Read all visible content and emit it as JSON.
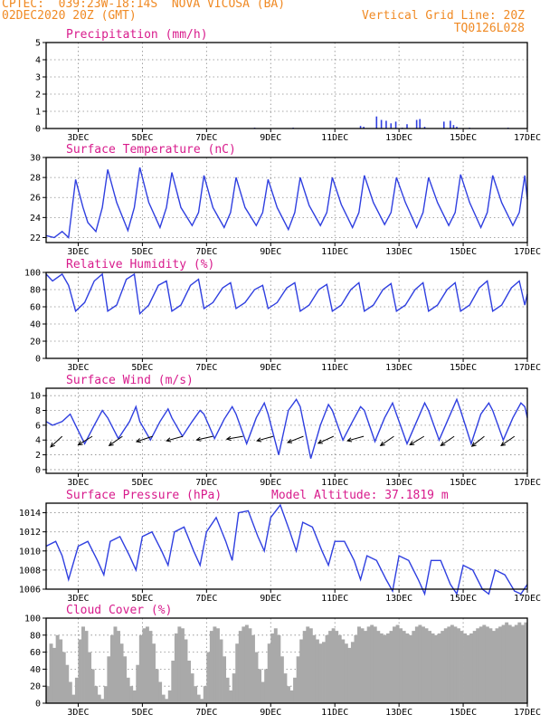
{
  "header": {
    "left_line1": "CPTEC:  039:23W-18:14S  NOVA VICOSA (BA)",
    "left_line2": "02DEC2020 20Z (GMT)",
    "right_line1": "Vertical Grid Line: 20Z",
    "right_line2": "TQ0126L028"
  },
  "colors": {
    "header": "#f08a24",
    "title": "#d81b8c",
    "series": "#2f3fe0",
    "cloud": "#a9a9a9"
  },
  "x_ticks": [
    "3DEC",
    "5DEC",
    "7DEC",
    "9DEC",
    "11DEC",
    "13DEC",
    "15DEC",
    "17DEC"
  ],
  "chart_data": [
    {
      "type": "bar",
      "title": "Precipitation (mm/h)",
      "x_range_days": [
        2.0,
        17.0
      ],
      "ylim": [
        0,
        5
      ],
      "yticks": [
        0,
        1,
        2,
        3,
        4,
        5
      ],
      "grid": true,
      "x": [
        3.1,
        8.5,
        9.7,
        11.8,
        11.9,
        12.3,
        12.45,
        12.6,
        12.75,
        12.9,
        13.1,
        13.25,
        13.55,
        13.65,
        13.8,
        14.4,
        14.6,
        14.7,
        14.8,
        15.2,
        16.4
      ],
      "values": [
        0.02,
        0.05,
        0.05,
        0.15,
        0.1,
        0.7,
        0.5,
        0.45,
        0.3,
        0.4,
        0.05,
        0.25,
        0.5,
        0.55,
        0.1,
        0.4,
        0.45,
        0.2,
        0.1,
        0.05,
        0.05
      ]
    },
    {
      "type": "line",
      "title": "Surface Temperature (nC)",
      "x_range_days": [
        2.0,
        17.0
      ],
      "ylim": [
        21.5,
        30
      ],
      "yticks": [
        22,
        24,
        26,
        28,
        30
      ],
      "grid": true,
      "series": [
        {
          "x": [
            2.0,
            2.25,
            2.5,
            2.7,
            2.92,
            3.15,
            3.3,
            3.55,
            3.75,
            3.92,
            4.2,
            4.55,
            4.75,
            4.92,
            5.2,
            5.55,
            5.75,
            5.92,
            6.2,
            6.55,
            6.75,
            6.92,
            7.2,
            7.55,
            7.75,
            7.92,
            8.2,
            8.55,
            8.75,
            8.92,
            9.2,
            9.55,
            9.75,
            9.92,
            10.2,
            10.55,
            10.75,
            10.92,
            11.2,
            11.55,
            11.75,
            11.92,
            12.2,
            12.55,
            12.75,
            12.92,
            13.2,
            13.55,
            13.75,
            13.92,
            14.2,
            14.55,
            14.75,
            14.92,
            15.2,
            15.55,
            15.75,
            15.92,
            16.2,
            16.55,
            16.75,
            16.92,
            17.0
          ],
          "values": [
            22.2,
            22.0,
            22.6,
            22.0,
            27.8,
            25.0,
            23.5,
            22.6,
            25.0,
            28.8,
            25.5,
            22.7,
            25.0,
            29.0,
            25.5,
            23.0,
            25.0,
            28.5,
            25.0,
            23.2,
            24.5,
            28.2,
            25.0,
            23.0,
            24.5,
            28.0,
            25.0,
            23.2,
            24.5,
            27.8,
            25.0,
            22.8,
            24.5,
            28.0,
            25.2,
            23.2,
            24.5,
            28.0,
            25.3,
            23.0,
            24.5,
            28.2,
            25.5,
            23.3,
            24.5,
            28.0,
            25.5,
            23.0,
            24.5,
            28.0,
            25.5,
            23.2,
            24.5,
            28.3,
            25.5,
            23.0,
            24.5,
            28.2,
            25.5,
            23.2,
            24.5,
            28.2,
            25.8
          ]
        }
      ]
    },
    {
      "type": "line",
      "title": "Relative Humidity (%)",
      "x_range_days": [
        2.0,
        17.0
      ],
      "ylim": [
        0,
        100
      ],
      "yticks": [
        0,
        20,
        40,
        60,
        80,
        100
      ],
      "grid": true,
      "series": [
        {
          "x": [
            2.0,
            2.2,
            2.5,
            2.7,
            2.92,
            3.2,
            3.5,
            3.75,
            3.92,
            4.2,
            4.5,
            4.75,
            4.92,
            5.2,
            5.5,
            5.75,
            5.92,
            6.2,
            6.5,
            6.75,
            6.92,
            7.2,
            7.5,
            7.75,
            7.92,
            8.2,
            8.5,
            8.75,
            8.92,
            9.2,
            9.5,
            9.75,
            9.92,
            10.2,
            10.5,
            10.75,
            10.92,
            11.2,
            11.5,
            11.75,
            11.92,
            12.2,
            12.5,
            12.75,
            12.92,
            13.2,
            13.5,
            13.75,
            13.92,
            14.2,
            14.5,
            14.75,
            14.92,
            15.2,
            15.5,
            15.75,
            15.92,
            16.2,
            16.5,
            16.75,
            16.92,
            17.0
          ],
          "values": [
            98,
            90,
            98,
            85,
            55,
            65,
            90,
            98,
            55,
            62,
            92,
            98,
            52,
            62,
            85,
            90,
            55,
            62,
            85,
            92,
            58,
            65,
            82,
            88,
            58,
            65,
            80,
            85,
            58,
            65,
            82,
            88,
            55,
            62,
            80,
            86,
            55,
            62,
            80,
            88,
            55,
            62,
            80,
            87,
            55,
            62,
            80,
            88,
            55,
            62,
            80,
            88,
            55,
            62,
            82,
            90,
            55,
            62,
            82,
            90,
            62,
            75
          ]
        }
      ]
    },
    {
      "type": "line",
      "title": "Surface Wind (m/s)",
      "x_range_days": [
        2.0,
        17.0
      ],
      "ylim": [
        -0.5,
        11
      ],
      "yticks": [
        0,
        2,
        4,
        6,
        8,
        10
      ],
      "grid": true,
      "series": [
        {
          "x": [
            2.0,
            2.2,
            2.5,
            2.75,
            2.92,
            3.2,
            3.5,
            3.75,
            3.92,
            4.25,
            4.6,
            4.8,
            4.92,
            5.25,
            5.55,
            5.8,
            5.92,
            6.25,
            6.55,
            6.8,
            6.92,
            7.25,
            7.55,
            7.8,
            7.92,
            8.25,
            8.55,
            8.8,
            8.92,
            9.25,
            9.55,
            9.8,
            9.92,
            10.25,
            10.55,
            10.8,
            10.92,
            11.25,
            11.55,
            11.8,
            11.92,
            12.25,
            12.55,
            12.8,
            12.92,
            13.25,
            13.55,
            13.8,
            13.92,
            14.25,
            14.55,
            14.8,
            14.92,
            15.25,
            15.55,
            15.8,
            15.92,
            16.25,
            16.55,
            16.8,
            16.92,
            17.0
          ],
          "values": [
            6.5,
            6.0,
            6.5,
            7.5,
            6.0,
            3.5,
            6.0,
            8.0,
            7.0,
            4.2,
            6.5,
            8.5,
            6.5,
            4.0,
            6.5,
            8.2,
            7.0,
            4.5,
            6.5,
            8.0,
            7.5,
            4.2,
            6.8,
            8.5,
            7.5,
            3.5,
            7.0,
            9.0,
            7.5,
            2.0,
            8.0,
            9.5,
            8.5,
            1.5,
            6.0,
            8.8,
            8.0,
            4.0,
            6.5,
            8.5,
            8.0,
            3.8,
            7.0,
            9.0,
            7.5,
            3.5,
            6.5,
            9.0,
            8.0,
            4.0,
            7.0,
            9.5,
            8.0,
            3.5,
            7.5,
            9.0,
            8.0,
            4.0,
            7.0,
            9.0,
            8.5,
            7.0
          ]
        }
      ],
      "wind_arrows_deg_from": [
        45,
        60,
        55,
        80,
        85,
        90,
        95,
        85,
        75,
        70,
        85,
        55,
        60,
        55,
        50,
        55
      ]
    },
    {
      "type": "line",
      "title": "Surface Pressure (hPa)",
      "annotation": "Model Altitude: 37.1819 m",
      "x_range_days": [
        2.0,
        17.0
      ],
      "ylim": [
        1006,
        1015
      ],
      "yticks": [
        1006,
        1008,
        1010,
        1012,
        1014
      ],
      "grid": true,
      "series": [
        {
          "x": [
            2.0,
            2.3,
            2.5,
            2.7,
            3.0,
            3.3,
            3.6,
            3.8,
            4.0,
            4.3,
            4.6,
            4.8,
            5.0,
            5.3,
            5.6,
            5.8,
            6.0,
            6.3,
            6.6,
            6.8,
            7.0,
            7.3,
            7.6,
            7.8,
            8.0,
            8.3,
            8.6,
            8.8,
            9.0,
            9.3,
            9.6,
            9.8,
            10.0,
            10.3,
            10.6,
            10.8,
            11.0,
            11.3,
            11.6,
            11.8,
            12.0,
            12.3,
            12.6,
            12.8,
            13.0,
            13.3,
            13.6,
            13.8,
            14.0,
            14.3,
            14.6,
            14.8,
            15.0,
            15.3,
            15.6,
            15.8,
            16.0,
            16.3,
            16.6,
            16.8,
            17.0
          ],
          "values": [
            1010.5,
            1011.0,
            1009.5,
            1007.0,
            1010.5,
            1011.0,
            1009.0,
            1007.5,
            1011.0,
            1011.5,
            1009.5,
            1008.0,
            1011.5,
            1012.0,
            1010.0,
            1008.5,
            1012.0,
            1012.5,
            1010.0,
            1008.5,
            1012.0,
            1013.5,
            1011.0,
            1009.0,
            1014.0,
            1014.2,
            1011.5,
            1010.0,
            1013.5,
            1014.8,
            1012.0,
            1010.0,
            1013.0,
            1012.5,
            1010.0,
            1008.5,
            1011.0,
            1011.0,
            1009.0,
            1007.0,
            1009.5,
            1009.0,
            1007.0,
            1005.8,
            1009.5,
            1009.0,
            1007.0,
            1005.5,
            1009.0,
            1009.0,
            1006.5,
            1005.5,
            1008.5,
            1008.0,
            1006.0,
            1005.5,
            1008.0,
            1007.5,
            1005.8,
            1005.5,
            1006.5
          ]
        }
      ]
    },
    {
      "type": "bar",
      "title": "Cloud Cover (%)",
      "x_range_days": [
        2.0,
        17.0
      ],
      "ylim": [
        0,
        100
      ],
      "yticks": [
        0,
        20,
        40,
        60,
        80,
        100
      ],
      "grid": true,
      "x": [
        2.0,
        2.1,
        2.2,
        2.3,
        2.4,
        2.5,
        2.6,
        2.7,
        2.8,
        2.9,
        3.0,
        3.1,
        3.2,
        3.3,
        3.4,
        3.5,
        3.6,
        3.7,
        3.8,
        3.9,
        4.0,
        4.1,
        4.2,
        4.3,
        4.4,
        4.5,
        4.6,
        4.7,
        4.8,
        4.9,
        5.0,
        5.1,
        5.2,
        5.3,
        5.4,
        5.5,
        5.6,
        5.7,
        5.8,
        5.9,
        6.0,
        6.1,
        6.2,
        6.3,
        6.4,
        6.5,
        6.6,
        6.7,
        6.8,
        6.9,
        7.0,
        7.1,
        7.2,
        7.3,
        7.4,
        7.5,
        7.6,
        7.7,
        7.8,
        7.9,
        8.0,
        8.1,
        8.2,
        8.3,
        8.4,
        8.5,
        8.6,
        8.7,
        8.8,
        8.9,
        9.0,
        9.1,
        9.2,
        9.3,
        9.4,
        9.5,
        9.6,
        9.7,
        9.8,
        9.9,
        10.0,
        10.1,
        10.2,
        10.3,
        10.4,
        10.5,
        10.6,
        10.7,
        10.8,
        10.9,
        11.0,
        11.1,
        11.2,
        11.3,
        11.4,
        11.5,
        11.6,
        11.7,
        11.8,
        11.9,
        12.0,
        12.1,
        12.2,
        12.3,
        12.4,
        12.5,
        12.6,
        12.7,
        12.8,
        12.9,
        13.0,
        13.1,
        13.2,
        13.3,
        13.4,
        13.5,
        13.6,
        13.7,
        13.8,
        13.9,
        14.0,
        14.1,
        14.2,
        14.3,
        14.4,
        14.5,
        14.6,
        14.7,
        14.8,
        14.9,
        15.0,
        15.1,
        15.2,
        15.3,
        15.4,
        15.5,
        15.6,
        15.7,
        15.8,
        15.9,
        16.0,
        16.1,
        16.2,
        16.3,
        16.4,
        16.5,
        16.6,
        16.7,
        16.8,
        16.9
      ],
      "values": [
        20,
        70,
        65,
        80,
        75,
        60,
        45,
        25,
        10,
        30,
        75,
        90,
        85,
        60,
        40,
        20,
        10,
        5,
        20,
        55,
        80,
        90,
        85,
        70,
        55,
        30,
        20,
        15,
        45,
        80,
        88,
        90,
        85,
        70,
        40,
        25,
        10,
        5,
        15,
        50,
        82,
        90,
        88,
        75,
        50,
        35,
        20,
        10,
        5,
        20,
        60,
        85,
        90,
        88,
        75,
        55,
        30,
        15,
        35,
        70,
        85,
        90,
        92,
        88,
        80,
        60,
        40,
        25,
        40,
        70,
        82,
        88,
        80,
        55,
        35,
        20,
        15,
        30,
        55,
        75,
        85,
        90,
        88,
        80,
        75,
        70,
        72,
        80,
        85,
        88,
        85,
        80,
        75,
        70,
        65,
        72,
        80,
        90,
        88,
        85,
        90,
        92,
        90,
        85,
        82,
        80,
        82,
        85,
        90,
        92,
        88,
        85,
        82,
        80,
        85,
        90,
        92,
        90,
        88,
        85,
        82,
        80,
        82,
        85,
        88,
        90,
        92,
        90,
        88,
        85,
        82,
        80,
        82,
        85,
        88,
        90,
        92,
        90,
        88,
        85,
        88,
        90,
        92,
        95,
        92,
        90,
        92,
        95,
        92,
        95
      ]
    }
  ]
}
